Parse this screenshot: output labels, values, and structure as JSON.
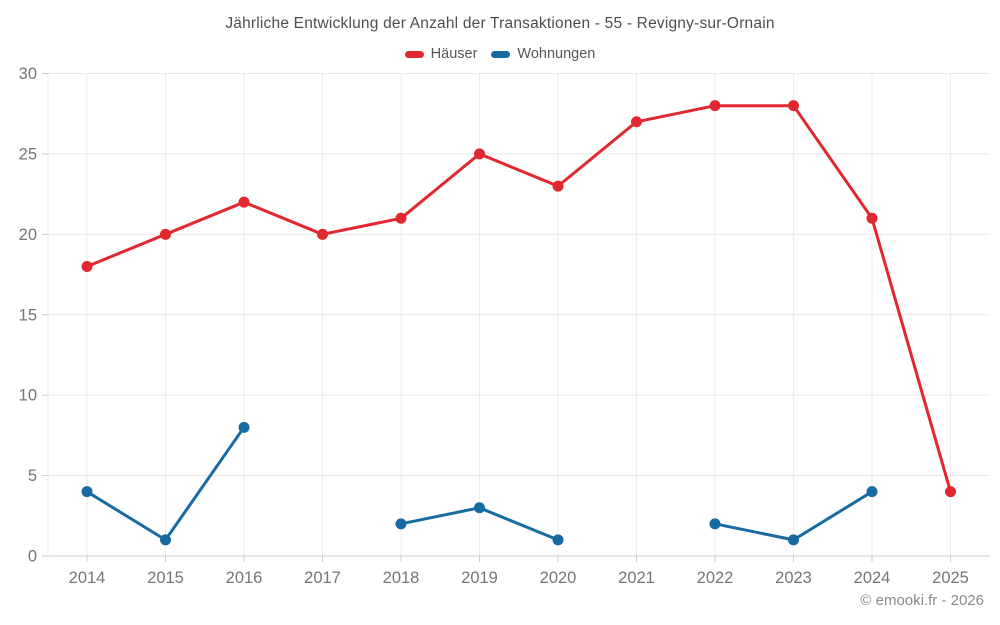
{
  "chart_data": {
    "type": "line",
    "title": "Jährliche Entwicklung der Anzahl der Transaktionen - 55 - Revigny-sur-Ornain",
    "categories": [
      "2014",
      "2015",
      "2016",
      "2017",
      "2018",
      "2019",
      "2020",
      "2021",
      "2022",
      "2023",
      "2024",
      "2025"
    ],
    "series": [
      {
        "name": "Häuser",
        "color": "#e0282e",
        "values": [
          18,
          20,
          22,
          20,
          21,
          25,
          23,
          27,
          28,
          28,
          21,
          4
        ]
      },
      {
        "name": "Wohnungen",
        "color": "#176ba0",
        "values": [
          4,
          1,
          8,
          null,
          2,
          3,
          1,
          null,
          2,
          1,
          4,
          null
        ]
      }
    ],
    "xlabel": "",
    "ylabel": "",
    "ylim": [
      0,
      30
    ],
    "yticks": [
      0,
      5,
      10,
      15,
      20,
      25,
      30
    ],
    "grid": true,
    "legend_position": "top"
  },
  "footer": {
    "credit": "© emooki.fr - 2026"
  },
  "colors": {
    "grid_horizontal": "#e9e9e9",
    "grid_vertical": "#ededed",
    "axis": "#cccccc",
    "tick_text": "#757575",
    "title_text": "#4d4d4d"
  }
}
